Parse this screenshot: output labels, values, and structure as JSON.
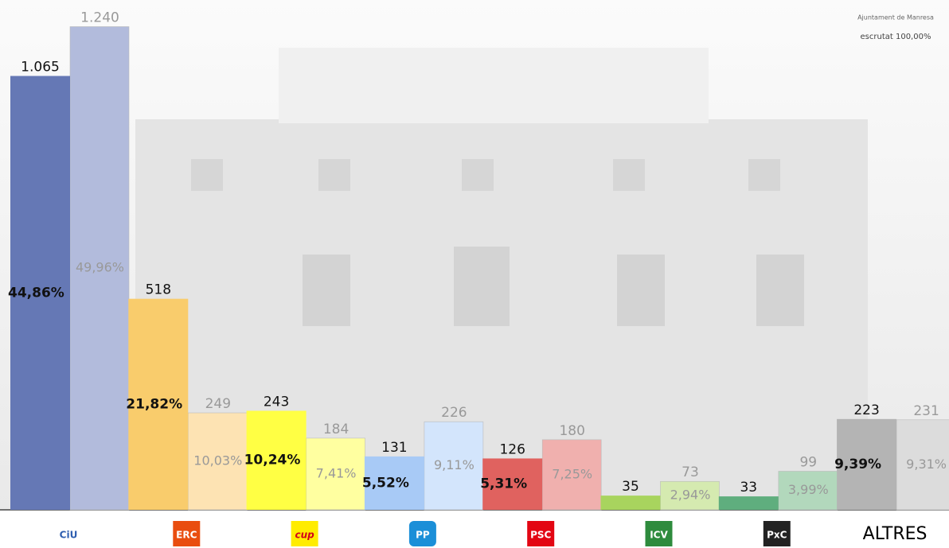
{
  "header": {
    "municipality": "Ajuntament de Manresa",
    "status": "escrutat 100,00%"
  },
  "chart_data": {
    "type": "bar",
    "categories": [
      "CiU",
      "ERC",
      "cup",
      "PP",
      "PSC",
      "ICV",
      "PxC",
      "ALTRES"
    ],
    "ylim": [
      0,
      50
    ],
    "series": [
      {
        "colors": [
          "#6578b5",
          "#f9cc6c",
          "#ffff44",
          "#a8caf6",
          "#e0625f",
          "#a8d45e",
          "#5fae7e",
          "#b4b4b4"
        ],
        "values": [
          44.86,
          21.82,
          10.24,
          5.52,
          5.31,
          1.47,
          1.39,
          9.39
        ],
        "value_labels": [
          "44,86%",
          "21,82%",
          "10,24%",
          "5,52%",
          "5,31%",
          null,
          null,
          "9,39%"
        ],
        "votes": [
          1065,
          518,
          243,
          131,
          126,
          35,
          33,
          223
        ],
        "vote_labels": [
          "1.065",
          "518",
          "243",
          "131",
          "126",
          "35",
          "33",
          "223"
        ]
      },
      {
        "colors": [
          "#b2bbdc",
          "#fde3b3",
          "#ffffa0",
          "#d3e5fc",
          "#f0b0ae",
          "#d5eab0",
          "#b2d8bc",
          "#dcdcdc"
        ],
        "values": [
          49.96,
          10.03,
          7.41,
          9.11,
          7.25,
          2.94,
          3.99,
          9.31
        ],
        "value_labels": [
          "49,96%",
          "10,03%",
          "7,41%",
          "9,11%",
          "7,25%",
          "2,94%",
          "3,99%",
          "9,31%"
        ],
        "votes": [
          1240,
          249,
          184,
          226,
          180,
          73,
          99,
          231
        ],
        "vote_labels": [
          "1.240",
          "249",
          "184",
          "226",
          "180",
          "73",
          "99",
          "231"
        ]
      }
    ]
  }
}
